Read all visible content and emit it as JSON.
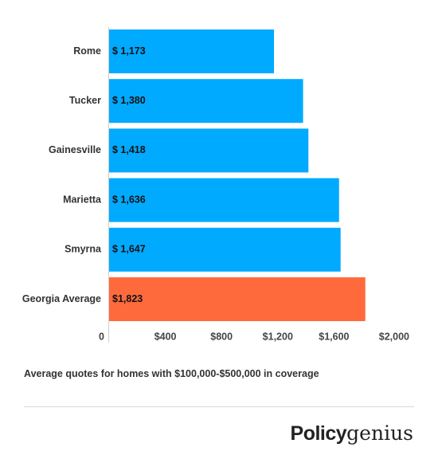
{
  "chart_data": {
    "type": "bar",
    "orientation": "horizontal",
    "categories": [
      "Rome",
      "Tucker",
      "Gainesville",
      "Marietta",
      "Smyrna",
      "Georgia Average"
    ],
    "values": [
      1173,
      1380,
      1418,
      1636,
      1647,
      1823
    ],
    "value_labels": [
      "$ 1,173",
      "$ 1,380",
      "$ 1,418",
      "$ 1,636",
      "$ 1,647",
      "$1,823"
    ],
    "bar_colors": [
      "#00aaff",
      "#00aaff",
      "#00aaff",
      "#00aaff",
      "#00aaff",
      "#ff6a3d"
    ],
    "x_ticks": [
      0,
      400,
      800,
      1200,
      1600,
      2000
    ],
    "x_tick_labels": [
      "0",
      "$400",
      "$800",
      "$1,200",
      "$1,600",
      "$2,000"
    ],
    "xlim": [
      0,
      2000
    ],
    "grid": false,
    "legend": "none"
  },
  "caption": "Average quotes for homes with $100,000-$500,000 in coverage",
  "brand": {
    "part1": "Policy",
    "part2": "genius"
  }
}
